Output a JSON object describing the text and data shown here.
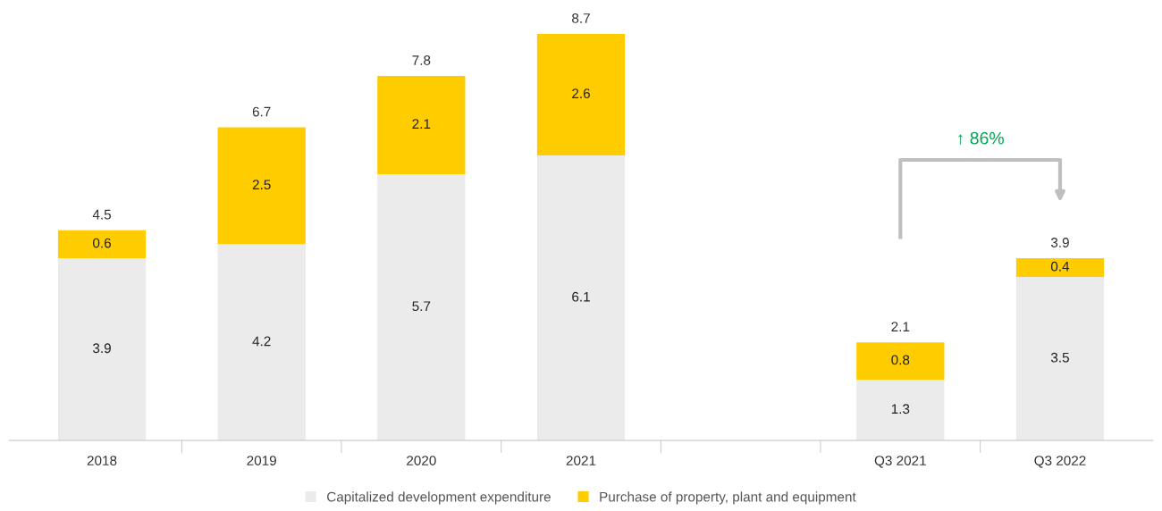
{
  "chart_data": {
    "type": "bar",
    "stacked": true,
    "categories": [
      "2018",
      "2019",
      "2020",
      "2021",
      null,
      "Q3 2021",
      "Q3 2022"
    ],
    "series": [
      {
        "name": "Capitalized development expenditure",
        "color": "#ebebeb",
        "values": [
          3.9,
          4.2,
          5.7,
          6.1,
          null,
          1.3,
          3.5
        ]
      },
      {
        "name": "Purchase of property, plant and equipment",
        "color": "#ffcc00",
        "values": [
          0.6,
          2.5,
          2.1,
          2.6,
          null,
          0.8,
          0.4
        ]
      }
    ],
    "data_labels": true,
    "totals": [
      "4.5",
      "6.7",
      "7.8",
      "8.7",
      null,
      "2.1",
      "3.9"
    ],
    "annotations": [
      "↑ 86%"
    ],
    "legend": "bottom",
    "tick_labels": "x",
    "grid": false
  }
}
